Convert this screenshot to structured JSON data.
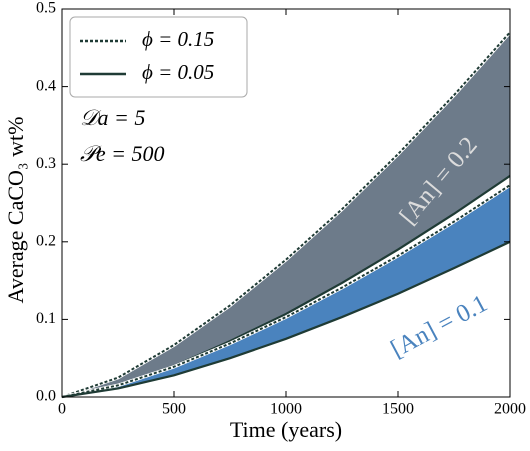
{
  "chart_data": {
    "type": "band-line",
    "x_label": "Time (years)",
    "y_label": "Average CaCO₃ wt%",
    "x": [
      0,
      250,
      500,
      750,
      1000,
      1250,
      1500,
      1750,
      2000
    ],
    "xlim": [
      0,
      2000
    ],
    "xticks": [
      0,
      500,
      1000,
      1500,
      2000
    ],
    "ylim": [
      0,
      0.5
    ],
    "yticks": [
      {
        "value": 0,
        "label": "0.0"
      },
      {
        "value": 0.1,
        "label": "0.1"
      },
      {
        "value": 0.2,
        "label": "0.2"
      },
      {
        "value": 0.3,
        "label": "0.3"
      },
      {
        "value": 0.4,
        "label": "0.4"
      },
      {
        "value": 0.5,
        "label": "0.5"
      }
    ],
    "line_color": "#1f3b35",
    "legend": [
      {
        "label": "ϕ = 0.15",
        "style": "dotted"
      },
      {
        "label": "ϕ = 0.05",
        "style": "solid"
      }
    ],
    "annotations": [
      "𝒟a = 5",
      "𝒫e = 500"
    ],
    "bands": [
      {
        "label": "[An] = 0.2",
        "color": "#6d7b8a",
        "label_color": "#dcdcdc",
        "upper": [
          0,
          0.025,
          0.067,
          0.118,
          0.177,
          0.242,
          0.313,
          0.389,
          0.47
        ],
        "lower": [
          0,
          0.015,
          0.04,
          0.072,
          0.107,
          0.147,
          0.19,
          0.236,
          0.285
        ]
      },
      {
        "label": "[An] = 0.1",
        "color": "#4a83be",
        "label_color": "#4a83be",
        "upper": [
          0,
          0.015,
          0.039,
          0.069,
          0.103,
          0.141,
          0.182,
          0.226,
          0.273
        ],
        "lower": [
          0,
          0.011,
          0.028,
          0.05,
          0.075,
          0.103,
          0.133,
          0.166,
          0.2
        ]
      }
    ]
  }
}
